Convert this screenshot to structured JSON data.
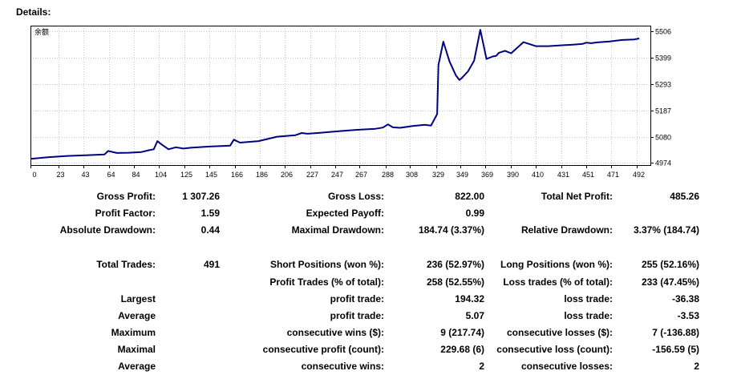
{
  "header": {
    "title": "Details:"
  },
  "chart_data": {
    "type": "line",
    "legend_label": "余额",
    "series": [
      {
        "name": "余额",
        "x": [
          0,
          15,
          30,
          45,
          60,
          63,
          70,
          80,
          90,
          96,
          100,
          103,
          106,
          112,
          118,
          124,
          130,
          145,
          155,
          162,
          165,
          170,
          185,
          200,
          215,
          220,
          225,
          235,
          250,
          265,
          280,
          286,
          290,
          294,
          300,
          310,
          320,
          325,
          330,
          331,
          335,
          340,
          345,
          348,
          350,
          355,
          360,
          365,
          370,
          375,
          378,
          380,
          385,
          390,
          400,
          410,
          420,
          430,
          440,
          448,
          451,
          455,
          460,
          470,
          480,
          490,
          494
        ],
        "y": [
          4990,
          4997,
          5002,
          5005,
          5008,
          5022,
          5014,
          5015,
          5018,
          5025,
          5029,
          5062,
          5050,
          5029,
          5037,
          5032,
          5035,
          5040,
          5042,
          5044,
          5068,
          5056,
          5062,
          5080,
          5086,
          5095,
          5092,
          5096,
          5102,
          5108,
          5112,
          5117,
          5130,
          5118,
          5116,
          5123,
          5128,
          5125,
          5172,
          5370,
          5465,
          5385,
          5330,
          5310,
          5318,
          5345,
          5388,
          5513,
          5395,
          5405,
          5408,
          5420,
          5428,
          5418,
          5463,
          5447,
          5447,
          5450,
          5453,
          5456,
          5461,
          5459,
          5462,
          5466,
          5472,
          5474,
          5478
        ]
      }
    ],
    "xlim": [
      0,
      503
    ],
    "ylim": [
      4965,
      5530
    ],
    "x_ticks": [
      "0",
      "23",
      "43",
      "64",
      "84",
      "104",
      "125",
      "145",
      "166",
      "186",
      "206",
      "227",
      "247",
      "267",
      "288",
      "308",
      "329",
      "349",
      "369",
      "390",
      "410",
      "431",
      "451",
      "471",
      "492"
    ],
    "y_ticks": [
      "5506",
      "5399",
      "5293",
      "5187",
      "5080",
      "4974"
    ],
    "line_color": "#000080",
    "grid": "dotted"
  },
  "stats": {
    "gross_profit_label": "Gross Profit:",
    "gross_profit_value": "1 307.26",
    "gross_loss_label": "Gross Loss:",
    "gross_loss_value": "822.00",
    "total_net_profit_label": "Total Net Profit:",
    "total_net_profit_value": "485.26",
    "profit_factor_label": "Profit Factor:",
    "profit_factor_value": "1.59",
    "expected_payoff_label": "Expected Payoff:",
    "expected_payoff_value": "0.99",
    "absolute_drawdown_label": "Absolute Drawdown:",
    "absolute_drawdown_value": "0.44",
    "maximal_drawdown_label": "Maximal Drawdown:",
    "maximal_drawdown_value": "184.74 (3.37%)",
    "relative_drawdown_label": "Relative Drawdown:",
    "relative_drawdown_value": "3.37% (184.74)",
    "total_trades_label": "Total Trades:",
    "total_trades_value": "491",
    "short_positions_label": "Short Positions (won %):",
    "short_positions_value": "236 (52.97%)",
    "long_positions_label": "Long Positions (won %):",
    "long_positions_value": "255 (52.16%)",
    "profit_trades_label": "Profit Trades (% of total):",
    "profit_trades_value": "258 (52.55%)",
    "loss_trades_label": "Loss trades (% of total):",
    "loss_trades_value": "233 (47.45%)",
    "largest_label": "Largest",
    "largest_profit_label": "profit trade:",
    "largest_profit_value": "194.32",
    "largest_loss_label": "loss trade:",
    "largest_loss_value": "-36.38",
    "average_label": "Average",
    "average_profit_label": "profit trade:",
    "average_profit_value": "5.07",
    "average_loss_label": "loss trade:",
    "average_loss_value": "-3.53",
    "maximum_label": "Maximum",
    "max_cons_wins_label": "consecutive wins ($):",
    "max_cons_wins_value": "9 (217.74)",
    "max_cons_losses_label": "consecutive losses ($):",
    "max_cons_losses_value": "7 (-136.88)",
    "maximal_label": "Maximal",
    "maximal_cons_profit_label": "consecutive profit (count):",
    "maximal_cons_profit_value": "229.68 (6)",
    "maximal_cons_loss_label": "consecutive loss (count):",
    "maximal_cons_loss_value": "-156.59 (5)",
    "average2_label": "Average",
    "avg_cons_wins_label": "consecutive wins:",
    "avg_cons_wins_value": "2",
    "avg_cons_losses_label": "consecutive losses:",
    "avg_cons_losses_value": "2"
  }
}
